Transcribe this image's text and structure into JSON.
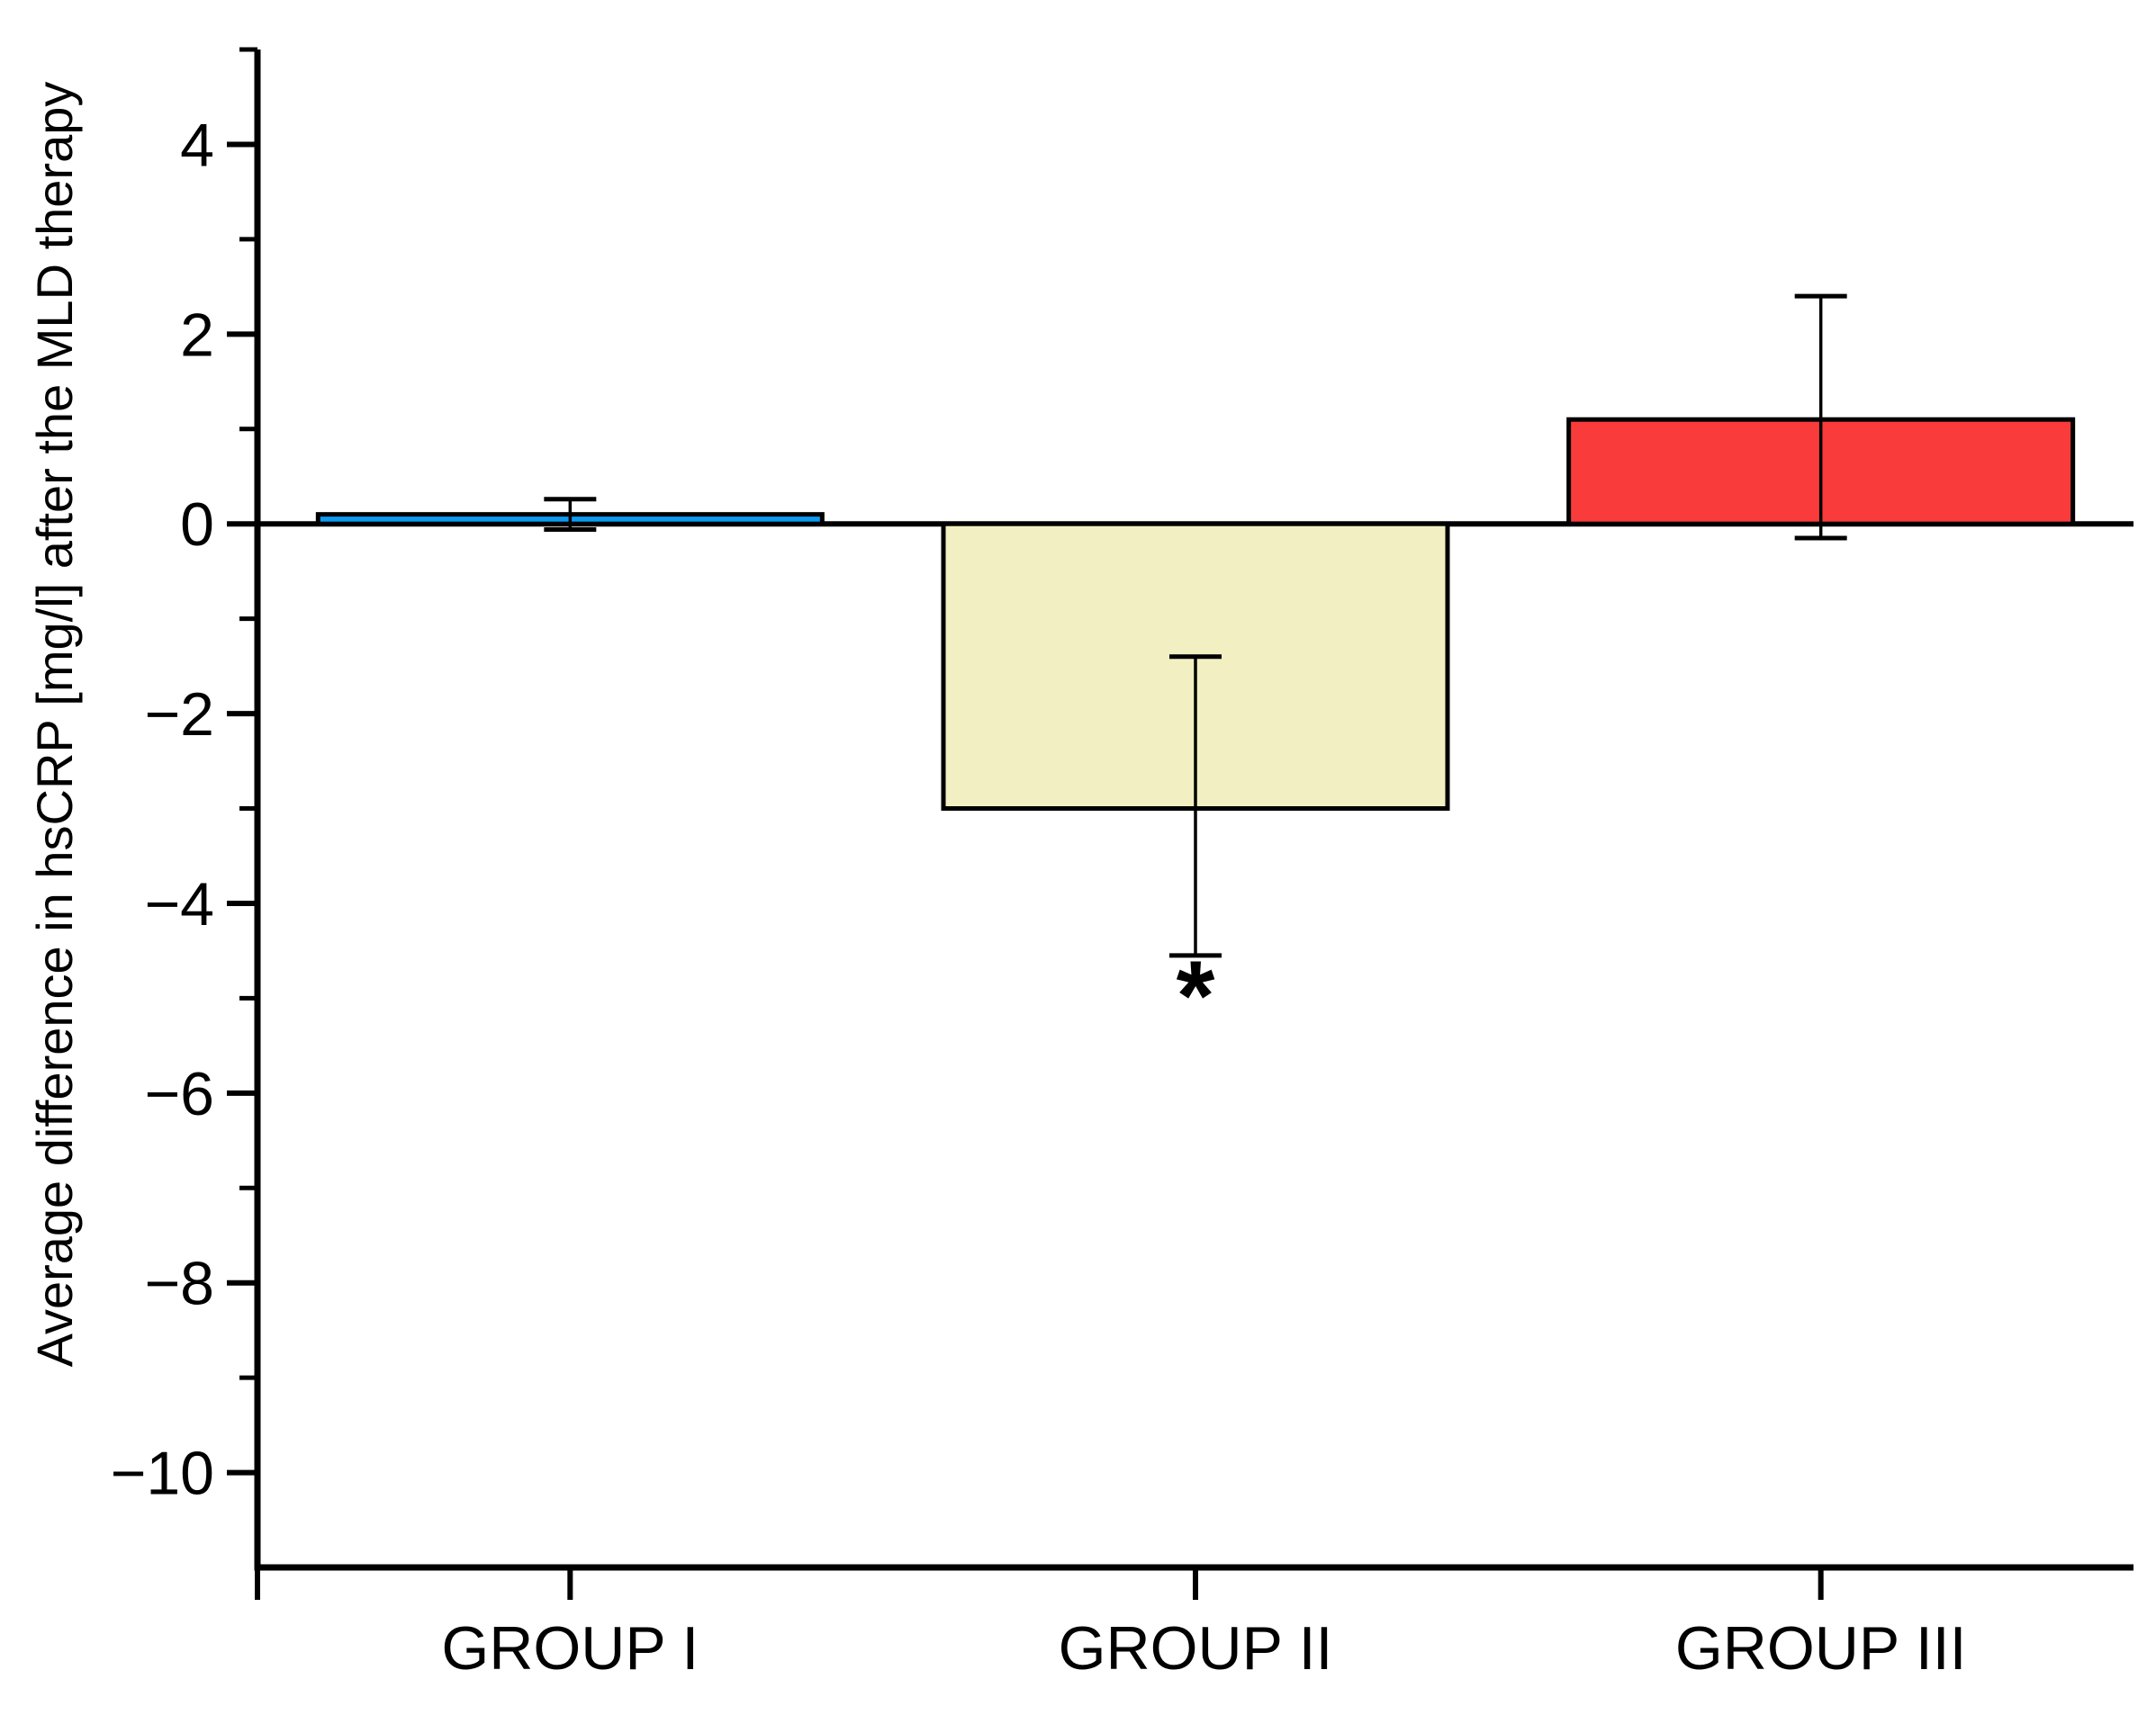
{
  "figure": {
    "background": "#ffffff",
    "frame_color": "#000000"
  },
  "chart_data": {
    "type": "bar",
    "title": "",
    "categories": [
      "GROUP I",
      "GROUP II",
      "GROUP III"
    ],
    "values": [
      0.1,
      -3.0,
      1.1
    ],
    "error_bars": [
      {
        "upper": 0.26,
        "lower": -0.06
      },
      {
        "upper": -1.4,
        "lower": -4.55
      },
      {
        "upper": 2.4,
        "lower": -0.15
      }
    ],
    "bar_colors": [
      "#0D9AF2",
      "#F2EFC2",
      "#F93B3B"
    ],
    "bar_border_color": "#000000",
    "xlabel": "",
    "ylabel": "Average difference in hsCRP [mg/l] after the MLD therapy",
    "ylim": [
      -11,
      5
    ],
    "ytick_major": [
      4,
      2,
      0,
      -2,
      -4,
      -6,
      -8,
      -10
    ],
    "ytick_labels": [
      "4",
      "2",
      "0",
      "−2",
      "−4",
      "−6",
      "−8",
      "−10"
    ],
    "ytick_minor": [
      5,
      3,
      1,
      -1,
      -3,
      -5,
      -7,
      -9
    ],
    "zero_line": true,
    "grid": false,
    "legend": null,
    "annotations": [
      {
        "text": "*",
        "category_index": 1,
        "y": -4.85,
        "meaning": "significance-marker"
      }
    ]
  }
}
